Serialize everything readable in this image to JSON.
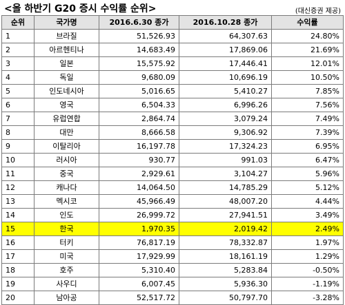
{
  "title": "<올 하반기 G20 증시 수익률 순위>",
  "source": "(대신증권 제공)",
  "headers": [
    "순위",
    "국가명",
    "2016.6.30 종가",
    "2016.10.28 종가",
    "수익률"
  ],
  "highlight_rank": "15",
  "rows": [
    {
      "rank": "1",
      "country": "브라질",
      "close_jun": "51,526.93",
      "close_oct": "64,307.63",
      "return": "24.80%"
    },
    {
      "rank": "2",
      "country": "아르헨티나",
      "close_jun": "14,683.49",
      "close_oct": "17,869.06",
      "return": "21.69%"
    },
    {
      "rank": "3",
      "country": "일본",
      "close_jun": "15,575.92",
      "close_oct": "17,446.41",
      "return": "12.01%"
    },
    {
      "rank": "4",
      "country": "독일",
      "close_jun": "9,680.09",
      "close_oct": "10,696.19",
      "return": "10.50%"
    },
    {
      "rank": "5",
      "country": "인도네시아",
      "close_jun": "5,016.65",
      "close_oct": "5,410.27",
      "return": "7.85%"
    },
    {
      "rank": "6",
      "country": "영국",
      "close_jun": "6,504.33",
      "close_oct": "6,996.26",
      "return": "7.56%"
    },
    {
      "rank": "7",
      "country": "유럽연합",
      "close_jun": "2,864.74",
      "close_oct": "3,079.24",
      "return": "7.49%"
    },
    {
      "rank": "8",
      "country": "대만",
      "close_jun": "8,666.58",
      "close_oct": "9,306.92",
      "return": "7.39%"
    },
    {
      "rank": "9",
      "country": "이탈리아",
      "close_jun": "16,197.78",
      "close_oct": "17,324.23",
      "return": "6.95%"
    },
    {
      "rank": "10",
      "country": "러시아",
      "close_jun": "930.77",
      "close_oct": "991.03",
      "return": "6.47%"
    },
    {
      "rank": "11",
      "country": "중국",
      "close_jun": "2,929.61",
      "close_oct": "3,104.27",
      "return": "5.96%"
    },
    {
      "rank": "12",
      "country": "캐나다",
      "close_jun": "14,064.50",
      "close_oct": "14,785.29",
      "return": "5.12%"
    },
    {
      "rank": "13",
      "country": "멕시코",
      "close_jun": "45,966.49",
      "close_oct": "48,007.20",
      "return": "4.44%"
    },
    {
      "rank": "14",
      "country": "인도",
      "close_jun": "26,999.72",
      "close_oct": "27,941.51",
      "return": "3.49%"
    },
    {
      "rank": "15",
      "country": "한국",
      "close_jun": "1,970.35",
      "close_oct": "2,019.42",
      "return": "2.49%"
    },
    {
      "rank": "16",
      "country": "터키",
      "close_jun": "76,817.19",
      "close_oct": "78,332.87",
      "return": "1.97%"
    },
    {
      "rank": "17",
      "country": "미국",
      "close_jun": "17,929.99",
      "close_oct": "18,161.19",
      "return": "1.29%"
    },
    {
      "rank": "18",
      "country": "호주",
      "close_jun": "5,310.40",
      "close_oct": "5,283.84",
      "return": "-0.50%"
    },
    {
      "rank": "19",
      "country": "사우디",
      "close_jun": "6,007.45",
      "close_oct": "5,936.30",
      "return": "-1.19%"
    },
    {
      "rank": "20",
      "country": "남아공",
      "close_jun": "52,517.72",
      "close_oct": "50,797.70",
      "return": "-3.28%"
    }
  ]
}
